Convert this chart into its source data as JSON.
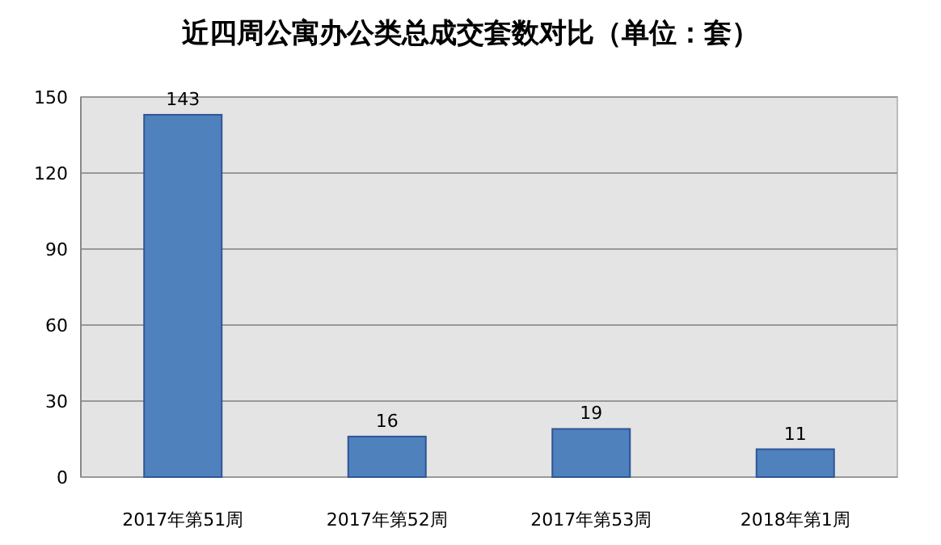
{
  "chart_data": {
    "type": "bar",
    "title": "近四周公寓办公类总成交套数对比（单位：套）",
    "categories": [
      "2017年第51周",
      "2017年第52周",
      "2017年第53周",
      "2018年第1周"
    ],
    "values": [
      143,
      16,
      19,
      11
    ],
    "color": "#4f81bd",
    "ylim": [
      0,
      150
    ],
    "yticks": [
      0,
      30,
      60,
      90,
      120,
      150
    ],
    "grid": "y",
    "data_labels": true
  }
}
